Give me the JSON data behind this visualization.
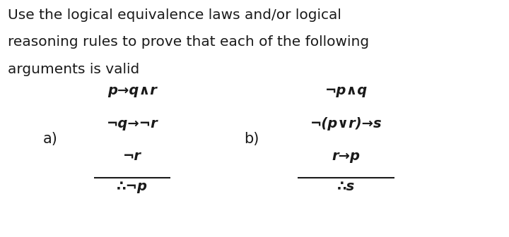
{
  "title_lines": [
    "Use the logical equivalence laws and/or logical",
    "reasoning rules to prove that each of the following",
    "arguments is valid"
  ],
  "background_color": "#ffffff",
  "text_color": "#1a1a1a",
  "a_label": "a)",
  "b_label": "b)",
  "a_premises": [
    "p→q∧r",
    "¬q→¬r",
    "¬r"
  ],
  "a_conclusion": "∴¬p",
  "b_premises": [
    "¬p∧q",
    "¬(p∨r)→s",
    "r→p"
  ],
  "b_conclusion": "∴s",
  "title_fontsize": 14.5,
  "logic_fontsize": 14.0,
  "label_fontsize": 15.0
}
